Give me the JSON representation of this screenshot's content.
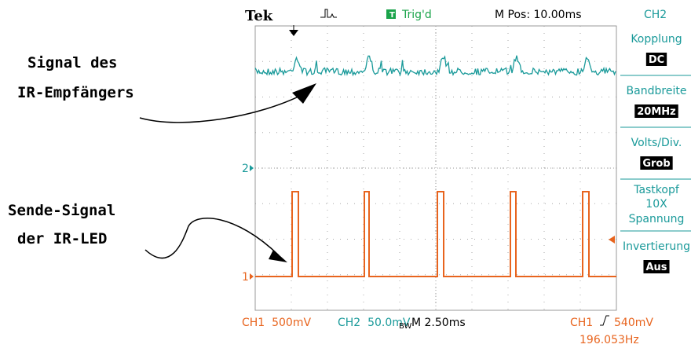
{
  "header": {
    "brand": "Tek",
    "trigger_status": "Trig'd",
    "position": "M Pos: 10.00ms",
    "channel": "CH2"
  },
  "menu": [
    {
      "label": "Kopplung",
      "value": "DC"
    },
    {
      "label": "Bandbreite",
      "value": "20MHz"
    },
    {
      "label": "Volts/Div.",
      "value": "Grob"
    },
    {
      "label": "Tastkopf",
      "lines": [
        "10X",
        "Spannung"
      ]
    },
    {
      "label": "Invertierung",
      "value": "Aus"
    }
  ],
  "markers": [
    "2",
    "1"
  ],
  "footer": {
    "ch1": "CH1  500mV",
    "ch2": "CH2  50.0mV",
    "bw": "BW",
    "time": "M 2.50ms",
    "trigger_source": "CH1",
    "trigger_level": "540mV",
    "frequency": "196.053Hz"
  },
  "annotations": [
    {
      "lines": [
        "Signal des",
        "IR-Empfängers"
      ]
    },
    {
      "lines": [
        "Sende-Signal",
        "der IR-LED"
      ]
    }
  ]
}
